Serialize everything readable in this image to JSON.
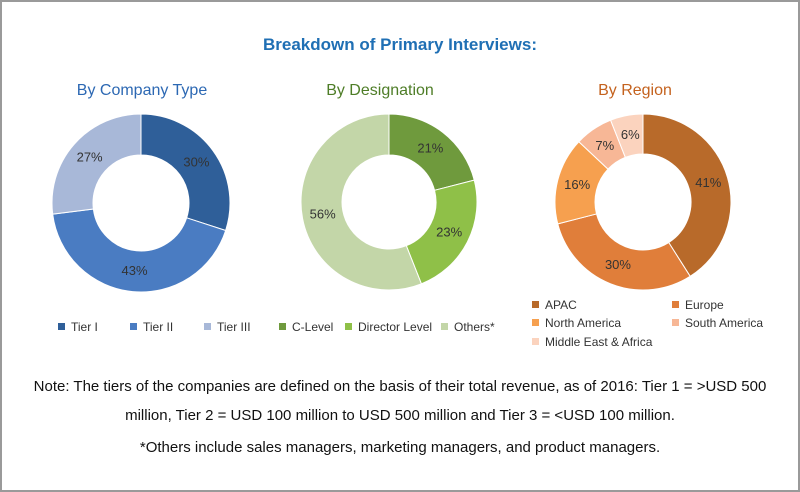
{
  "title": "Breakdown of Primary Interviews:",
  "title_color": "#1f6fb4",
  "chart_data": [
    {
      "type": "pie",
      "style": "donut",
      "title": "By Company Type",
      "title_color": "#2c68b3",
      "categories": [
        "Tier I",
        "Tier II",
        "Tier III"
      ],
      "values": [
        30,
        43,
        27
      ],
      "labels": [
        "30%",
        "43%",
        "27%"
      ],
      "colors": [
        "#2f5f99",
        "#4a7cc2",
        "#a8b8d8"
      ],
      "legend": "bottom"
    },
    {
      "type": "pie",
      "style": "donut",
      "title": "By Designation",
      "title_color": "#4e7d27",
      "categories": [
        "C-Level",
        "Director Level",
        "Others*"
      ],
      "values": [
        21,
        23,
        56
      ],
      "labels": [
        "21%",
        "23%",
        "56%"
      ],
      "colors": [
        "#6f9a3d",
        "#8fc048",
        "#c3d6a8"
      ],
      "legend": "bottom"
    },
    {
      "type": "pie",
      "style": "donut",
      "title": "By Region",
      "title_color": "#c4621e",
      "categories": [
        "APAC",
        "Europe",
        "North America",
        "South America",
        "Middle East & Africa"
      ],
      "values": [
        41,
        30,
        16,
        7,
        6
      ],
      "labels": [
        "41%",
        "30%",
        "16%",
        "7%",
        "6%"
      ],
      "colors": [
        "#b86a2a",
        "#e07e3a",
        "#f6a04f",
        "#f7b796",
        "#fbd3be"
      ],
      "legend": "bottom"
    }
  ],
  "notes": {
    "line1": "Note: The tiers of the companies are defined on the basis of their total revenue, as of 2016: Tier 1 = >USD 500",
    "line2": "million, Tier 2 = USD 100 million to USD 500 million and Tier 3 = <USD 100 million.",
    "line3": "*Others include sales managers, marketing managers, and product managers."
  }
}
